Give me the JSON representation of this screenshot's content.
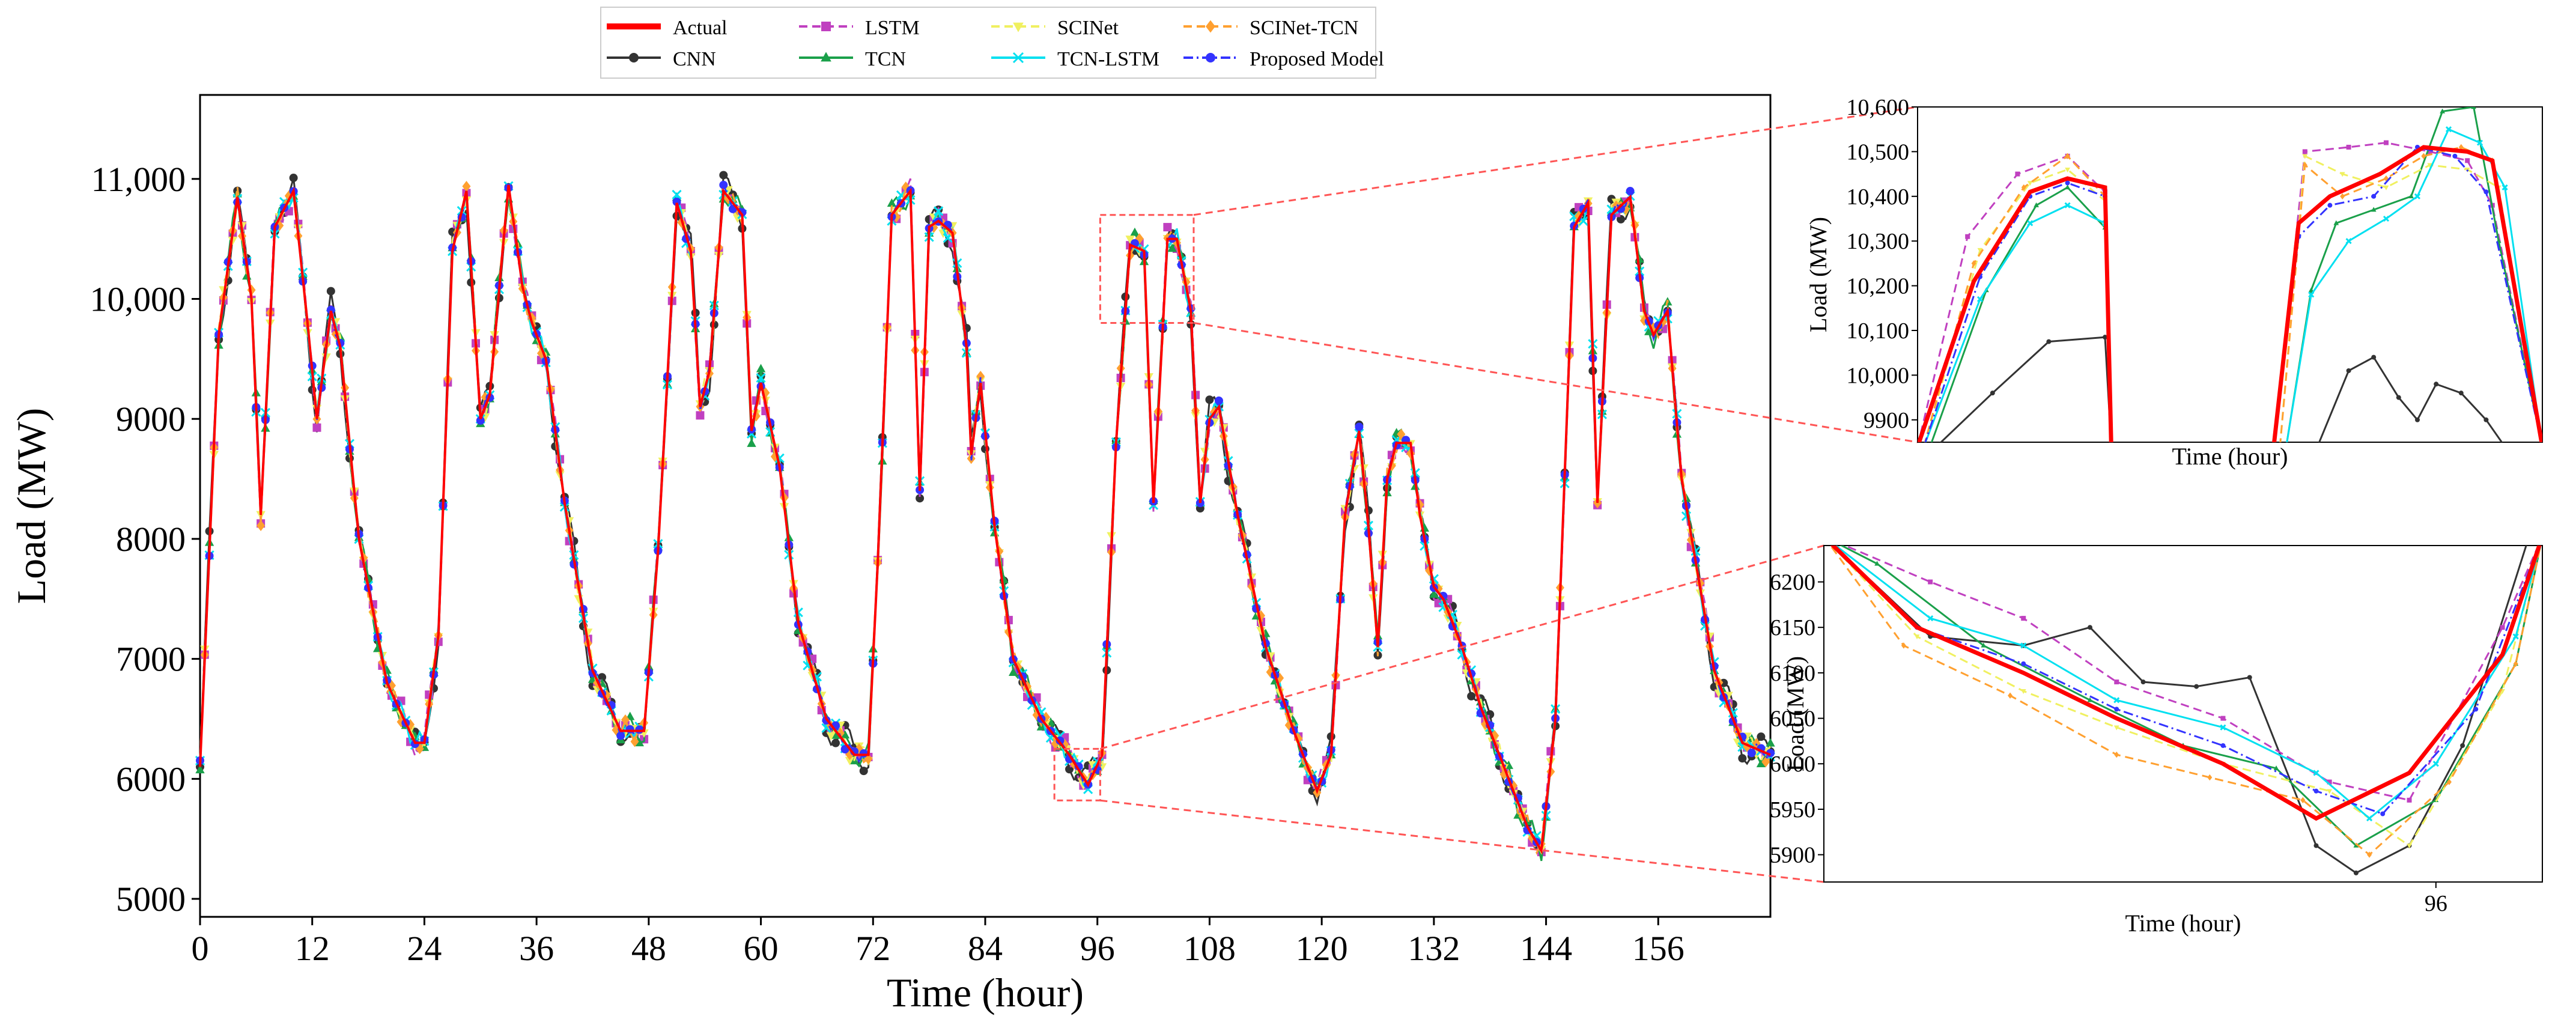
{
  "legend": [
    {
      "label": "Actual",
      "color": "#ff0000",
      "marker": "none",
      "dash": "solid",
      "width": "thick"
    },
    {
      "label": "CNN",
      "color": "#333333",
      "marker": "circle",
      "dash": "solid"
    },
    {
      "label": "LSTM",
      "color": "#c040c0",
      "marker": "square",
      "dash": "dashed"
    },
    {
      "label": "TCN",
      "color": "#1aa04a",
      "marker": "triangle",
      "dash": "solid"
    },
    {
      "label": "SCINet",
      "color": "#f0f060",
      "marker": "triangle-down",
      "dash": "dashed"
    },
    {
      "label": "TCN-LSTM",
      "color": "#00e0f0",
      "marker": "x",
      "dash": "solid"
    },
    {
      "label": "SCINet-TCN",
      "color": "#ffa030",
      "marker": "diamond",
      "dash": "dashed"
    },
    {
      "label": "Proposed Model",
      "color": "#3333ff",
      "marker": "circle",
      "dash": "dashdot"
    }
  ],
  "chart_data": [
    {
      "type": "line",
      "title": "",
      "xlabel": "Time (hour)",
      "ylabel": "Load (MW)",
      "xlim": [
        0,
        168
      ],
      "ylim": [
        4850,
        11700
      ],
      "x_ticks": [
        0,
        12,
        24,
        36,
        48,
        60,
        72,
        84,
        96,
        108,
        120,
        132,
        144,
        156
      ],
      "x_tick_labels": [
        "0",
        "12",
        "24",
        "36",
        "48",
        "60",
        "72",
        "84",
        "96",
        "108",
        "120",
        "132",
        "144",
        "156"
      ],
      "y_ticks": [
        5000,
        6000,
        7000,
        8000,
        9000,
        10000,
        11000
      ],
      "y_tick_labels": [
        "5000",
        "6000",
        "7000",
        "8000",
        "9000",
        "10,000",
        "11,000"
      ],
      "actual_keypoints": {
        "x": [
          0,
          2,
          4,
          5.5,
          6.5,
          8,
          10,
          11.5,
          12.5,
          14,
          15,
          17,
          20,
          23,
          24,
          25.5,
          27,
          28.5,
          30,
          31,
          33,
          34.5,
          35.5,
          37,
          39,
          42,
          45,
          47.5,
          49,
          51,
          52.5,
          53.5,
          54.5,
          56,
          58,
          59,
          60,
          62,
          64,
          67,
          70,
          71.5,
          72.5,
          74,
          76,
          77,
          78,
          79,
          80.5,
          82,
          82.5,
          83.5,
          85,
          87,
          90,
          93,
          95,
          96.5,
          98,
          99.5,
          101,
          102,
          103.5,
          104.5,
          106,
          107,
          108,
          109,
          111,
          114,
          117,
          119.5,
          121,
          122.5,
          124,
          125,
          126,
          127,
          128,
          129.5,
          130.5,
          132,
          133,
          135,
          137,
          140,
          142,
          143.5,
          145,
          147,
          148.5,
          149.5,
          151,
          153,
          154.5,
          155.5,
          157,
          158.5,
          162,
          165,
          168
        ],
        "y": [
          6100,
          9700,
          10850,
          10000,
          8200,
          10600,
          10900,
          9800,
          9000,
          9900,
          9600,
          8000,
          6800,
          6300,
          6300,
          7200,
          10400,
          10900,
          9000,
          9200,
          10950,
          10100,
          9800,
          9500,
          8300,
          6900,
          6400,
          6400,
          7900,
          10800,
          10400,
          9100,
          9400,
          10900,
          10700,
          8900,
          9300,
          8600,
          7300,
          6500,
          6200,
          6200,
          7800,
          10700,
          10900,
          8400,
          10600,
          10650,
          10550,
          9600,
          8700,
          9300,
          8100,
          7000,
          6500,
          6200,
          5950,
          6200,
          8800,
          10450,
          10400,
          8300,
          10500,
          10500,
          9900,
          8300,
          9000,
          9100,
          8200,
          7100,
          6400,
          5900,
          6200,
          8200,
          8900,
          8100,
          7100,
          8500,
          8800,
          8800,
          8200,
          7600,
          7500,
          7100,
          6600,
          6000,
          5600,
          5400,
          6500,
          10600,
          10800,
          8300,
          10700,
          10850,
          9900,
          9700,
          9900,
          8500,
          6900,
          6300,
          6200
        ]
      },
      "zoom_boxes": [
        {
          "x_range": [
            96.3,
            106.3
          ],
          "y_range": [
            9800,
            10700
          ]
        },
        {
          "x_range": [
            91.4,
            96.3
          ],
          "y_range": [
            5820,
            6250
          ]
        }
      ]
    },
    {
      "type": "line",
      "title": "",
      "xlabel": "Time (hour)",
      "ylabel": "Load (MW)",
      "xlim": [
        0,
        10
      ],
      "ylim": [
        9850,
        10600
      ],
      "y_ticks": [
        9900,
        10000,
        10100,
        10200,
        10300,
        10400,
        10500,
        10600
      ],
      "y_tick_labels": [
        "9900",
        "10,000",
        "10,100",
        "10,200",
        "10,300",
        "10,400",
        "10,500",
        "10,600"
      ],
      "series": [
        {
          "name": "Actual",
          "segments": [
            {
              "x": [
                0,
                0.9,
                1.8,
                2.4,
                3.0,
                3.1
              ],
              "y": [
                9840,
                10210,
                10410,
                10440,
                10420,
                9840
              ]
            },
            {
              "x": [
                5.7,
                6.1,
                6.6,
                7.4,
                8.1,
                8.8,
                9.2,
                10
              ],
              "y": [
                9840,
                10340,
                10400,
                10450,
                10510,
                10500,
                10480,
                9840
              ]
            }
          ]
        },
        {
          "name": "CNN",
          "segments": [
            {
              "x": [
                0.3,
                1.2,
                2.1,
                3.0,
                3.1
              ],
              "y": [
                9840,
                9960,
                10075,
                10085,
                9840
              ]
            },
            {
              "x": [
                6.4,
                6.9,
                7.3,
                7.7,
                8.0,
                8.3,
                8.7,
                9.1,
                9.4
              ],
              "y": [
                9840,
                10010,
                10040,
                9950,
                9900,
                9980,
                9960,
                9900,
                9840
              ]
            }
          ]
        },
        {
          "name": "LSTM",
          "segments": [
            {
              "x": [
                0,
                0.8,
                1.6,
                2.4,
                3.0,
                3.1
              ],
              "y": [
                9840,
                10310,
                10450,
                10490,
                10410,
                9840
              ]
            },
            {
              "x": [
                5.7,
                6.2,
                6.9,
                7.5,
                8.2,
                8.8,
                9.2,
                10
              ],
              "y": [
                9840,
                10500,
                10510,
                10520,
                10500,
                10480,
                10380,
                9840
              ]
            }
          ]
        },
        {
          "name": "TCN",
          "segments": [
            {
              "x": [
                0.2,
                1.1,
                1.9,
                2.4,
                3.0,
                3.1
              ],
              "y": [
                9840,
                10190,
                10380,
                10420,
                10330,
                9840
              ]
            },
            {
              "x": [
                5.9,
                6.3,
                6.7,
                7.3,
                7.9,
                8.4,
                8.9,
                9.3,
                10
              ],
              "y": [
                9840,
                10190,
                10340,
                10370,
                10400,
                10590,
                10600,
                10300,
                9840
              ]
            }
          ]
        },
        {
          "name": "SCINet",
          "segments": [
            {
              "x": [
                0.1,
                1.0,
                1.8,
                2.4,
                3.0,
                3.1
              ],
              "y": [
                9840,
                10280,
                10430,
                10460,
                10390,
                9840
              ]
            },
            {
              "x": [
                5.8,
                6.2,
                6.8,
                7.5,
                8.2,
                8.8,
                9.3,
                10
              ],
              "y": [
                9840,
                10490,
                10450,
                10420,
                10470,
                10460,
                10420,
                9840
              ]
            }
          ]
        },
        {
          "name": "TCN-LSTM",
          "segments": [
            {
              "x": [
                0.1,
                1.0,
                1.8,
                2.4,
                3.0,
                3.1
              ],
              "y": [
                9840,
                10170,
                10340,
                10380,
                10340,
                9840
              ]
            },
            {
              "x": [
                5.9,
                6.3,
                6.9,
                7.5,
                8.0,
                8.5,
                9.0,
                9.4,
                10
              ],
              "y": [
                9840,
                10180,
                10300,
                10350,
                10400,
                10550,
                10520,
                10420,
                9840
              ]
            }
          ]
        },
        {
          "name": "SCINet-TCN",
          "segments": [
            {
              "x": [
                0.1,
                0.9,
                1.7,
                2.4,
                3.0,
                3.1
              ],
              "y": [
                9840,
                10250,
                10420,
                10490,
                10400,
                9840
              ]
            },
            {
              "x": [
                5.8,
                6.2,
                6.8,
                7.5,
                8.1,
                8.7,
                9.2,
                10
              ],
              "y": [
                9840,
                10470,
                10400,
                10440,
                10490,
                10510,
                10480,
                9840
              ]
            }
          ]
        },
        {
          "name": "Proposed Model",
          "segments": [
            {
              "x": [
                0.1,
                1.0,
                1.8,
                2.4,
                3.0,
                3.1
              ],
              "y": [
                9840,
                10220,
                10400,
                10430,
                10400,
                9840
              ]
            },
            {
              "x": [
                5.7,
                6.1,
                6.6,
                7.3,
                8.0,
                8.6,
                9.1,
                10
              ],
              "y": [
                9840,
                10310,
                10380,
                10400,
                10510,
                10490,
                10410,
                9840
              ]
            }
          ]
        }
      ]
    },
    {
      "type": "line",
      "title": "",
      "xlabel": "Time (hour)",
      "ylabel": "Load (MW)",
      "xlim": [
        91.4,
        96.8
      ],
      "ylim": [
        5870,
        6240
      ],
      "x_ticks": [
        96
      ],
      "x_tick_labels": [
        "96"
      ],
      "y_ticks": [
        5900,
        5950,
        6000,
        6050,
        6100,
        6150,
        6200
      ],
      "y_tick_labels": [
        "5900",
        "5950",
        "6000",
        "6050",
        "6100",
        "6150",
        "6200"
      ],
      "series": [
        {
          "name": "Actual",
          "x": [
            91.4,
            92.1,
            92.9,
            93.6,
            94.4,
            95.1,
            95.8,
            96.5,
            96.8
          ],
          "y": [
            6250,
            6150,
            6100,
            6050,
            6000,
            5940,
            5990,
            6120,
            6250
          ]
        },
        {
          "name": "CNN",
          "x": [
            91.4,
            92.2,
            92.9,
            93.4,
            93.8,
            94.2,
            94.6,
            95.1,
            95.4,
            95.8,
            96.2,
            96.7
          ],
          "y": [
            6250,
            6140,
            6130,
            6150,
            6090,
            6085,
            6095,
            5910,
            5880,
            5910,
            6020,
            6250
          ]
        },
        {
          "name": "LSTM",
          "x": [
            91.4,
            92.2,
            92.9,
            93.6,
            94.4,
            95.2,
            95.8,
            96.5,
            96.8
          ],
          "y": [
            6250,
            6200,
            6160,
            6090,
            6050,
            5980,
            5960,
            6150,
            6250
          ]
        },
        {
          "name": "TCN",
          "x": [
            91.4,
            91.8,
            92.6,
            93.4,
            94.1,
            94.8,
            95.4,
            96.0,
            96.6,
            96.8
          ],
          "y": [
            6250,
            6220,
            6130,
            6070,
            6020,
            5995,
            5910,
            5960,
            6110,
            6250
          ]
        },
        {
          "name": "SCINet",
          "x": [
            91.4,
            92.1,
            92.9,
            93.6,
            94.4,
            95.2,
            95.8,
            96.5,
            96.8
          ],
          "y": [
            6250,
            6140,
            6080,
            6040,
            6000,
            5970,
            5910,
            6080,
            6250
          ]
        },
        {
          "name": "TCN-LSTM",
          "x": [
            91.4,
            92.2,
            92.9,
            93.6,
            94.4,
            95.1,
            95.5,
            96.0,
            96.6,
            96.8
          ],
          "y": [
            6250,
            6160,
            6130,
            6070,
            6040,
            5990,
            5940,
            6000,
            6140,
            6250
          ]
        },
        {
          "name": "SCINet-TCN",
          "x": [
            91.4,
            92.0,
            92.8,
            93.6,
            94.3,
            95.0,
            95.5,
            96.1,
            96.6,
            96.8
          ],
          "y": [
            6250,
            6130,
            6075,
            6010,
            5985,
            5960,
            5900,
            5980,
            6110,
            6250
          ]
        },
        {
          "name": "Proposed Model",
          "x": [
            91.4,
            92.1,
            92.9,
            93.6,
            94.4,
            95.1,
            95.6,
            96.3,
            96.8
          ],
          "y": [
            6250,
            6150,
            6110,
            6060,
            6020,
            5970,
            5945,
            6060,
            6250
          ]
        }
      ]
    }
  ]
}
